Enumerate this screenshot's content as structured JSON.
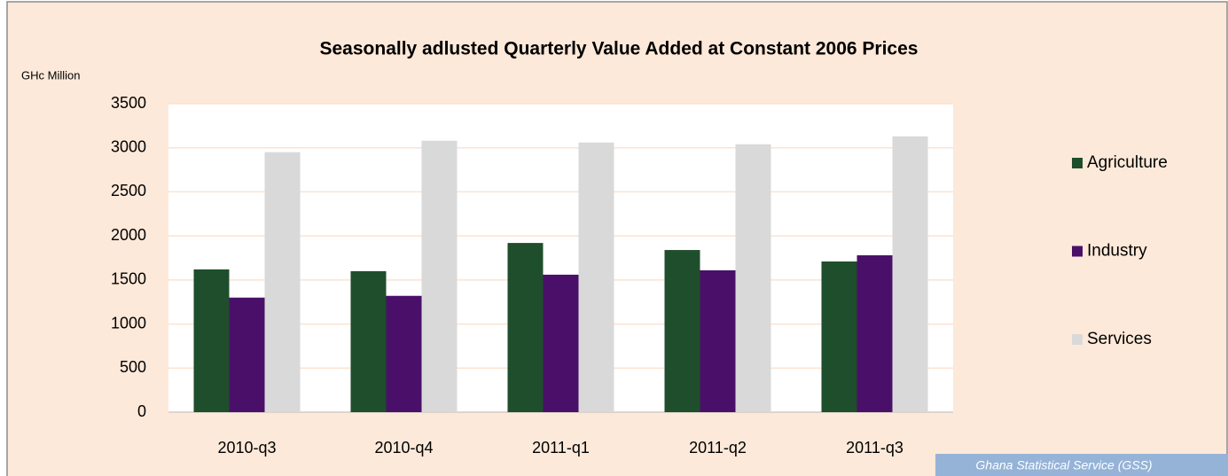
{
  "chart_data": {
    "type": "bar",
    "title": "Seasonally adlusted Quarterly Value Added at Constant 2006 Prices",
    "y_label": "GHc Million",
    "source": "Ghana Statistical Service (GSS)",
    "categories": [
      "2010-q3",
      "2010-q4",
      "2011-q1",
      "2011-q2",
      "2011-q3"
    ],
    "series": [
      {
        "name": "Agriculture",
        "color": "#1f4e2c",
        "values": [
          1620,
          1600,
          1920,
          1840,
          1710
        ]
      },
      {
        "name": "Industry",
        "color": "#4a1069",
        "values": [
          1300,
          1320,
          1560,
          1610,
          1780
        ]
      },
      {
        "name": "Services",
        "color": "#d9d9d9",
        "values": [
          2950,
          3080,
          3060,
          3040,
          3130
        ]
      }
    ],
    "ylim": [
      0,
      3500
    ],
    "yticks": [
      0,
      500,
      1000,
      1500,
      2000,
      2500,
      3000,
      3500
    ],
    "grid": true,
    "legend": "right"
  }
}
